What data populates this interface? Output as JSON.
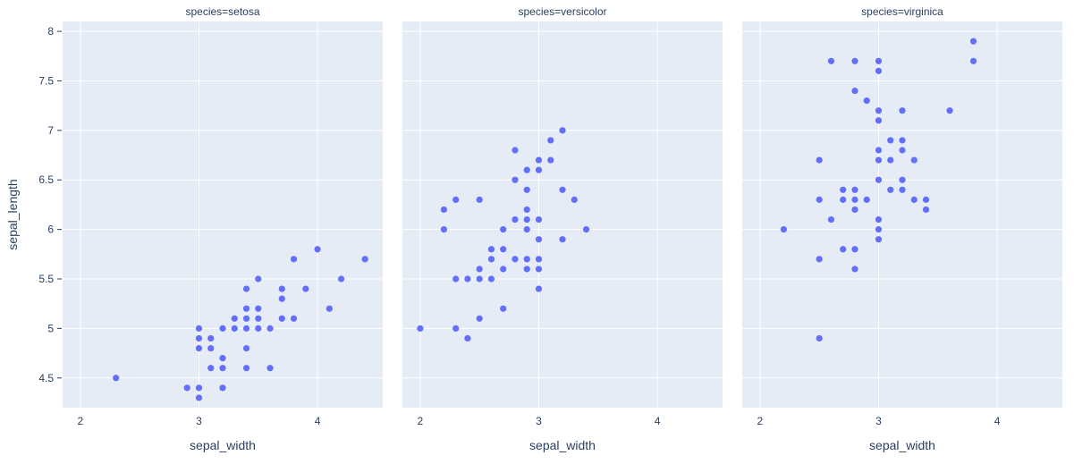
{
  "chart_data": {
    "type": "scatter",
    "xlabel": "sepal_width",
    "ylabel": "sepal_length",
    "xlim": [
      1.85,
      4.55
    ],
    "ylim": [
      4.2,
      8.1
    ],
    "x_ticks": [
      2,
      3,
      4
    ],
    "y_ticks": [
      4.5,
      5,
      5.5,
      6,
      6.5,
      7,
      7.5,
      8
    ],
    "grid": true,
    "marker_color": "#636efa",
    "plot_bg_color": "#e5ecf6",
    "facets": [
      {
        "title": "species=setosa",
        "points": [
          [
            2.3,
            4.5
          ],
          [
            2.9,
            4.4
          ],
          [
            3.0,
            4.4
          ],
          [
            3.0,
            4.3
          ],
          [
            3.0,
            4.8
          ],
          [
            3.0,
            4.9
          ],
          [
            3.0,
            5.0
          ],
          [
            3.1,
            4.8
          ],
          [
            3.1,
            4.9
          ],
          [
            3.1,
            4.6
          ],
          [
            3.2,
            4.4
          ],
          [
            3.2,
            4.6
          ],
          [
            3.2,
            4.7
          ],
          [
            3.2,
            5.0
          ],
          [
            3.3,
            5.0
          ],
          [
            3.3,
            5.1
          ],
          [
            3.4,
            4.6
          ],
          [
            3.4,
            4.8
          ],
          [
            3.4,
            5.0
          ],
          [
            3.4,
            5.1
          ],
          [
            3.4,
            5.2
          ],
          [
            3.4,
            5.4
          ],
          [
            3.5,
            5.0
          ],
          [
            3.5,
            5.1
          ],
          [
            3.5,
            5.2
          ],
          [
            3.5,
            5.5
          ],
          [
            3.6,
            4.6
          ],
          [
            3.6,
            5.0
          ],
          [
            3.7,
            5.1
          ],
          [
            3.7,
            5.3
          ],
          [
            3.7,
            5.4
          ],
          [
            3.8,
            5.1
          ],
          [
            3.8,
            5.7
          ],
          [
            3.9,
            5.4
          ],
          [
            4.0,
            5.8
          ],
          [
            4.1,
            5.2
          ],
          [
            4.2,
            5.5
          ],
          [
            4.4,
            5.7
          ]
        ]
      },
      {
        "title": "species=versicolor",
        "points": [
          [
            2.0,
            5.0
          ],
          [
            2.2,
            6.0
          ],
          [
            2.2,
            6.2
          ],
          [
            2.3,
            5.0
          ],
          [
            2.3,
            5.5
          ],
          [
            2.3,
            6.3
          ],
          [
            2.4,
            4.9
          ],
          [
            2.4,
            5.5
          ],
          [
            2.5,
            5.1
          ],
          [
            2.5,
            5.5
          ],
          [
            2.5,
            5.6
          ],
          [
            2.5,
            6.3
          ],
          [
            2.6,
            5.5
          ],
          [
            2.6,
            5.7
          ],
          [
            2.6,
            5.8
          ],
          [
            2.7,
            5.2
          ],
          [
            2.7,
            5.6
          ],
          [
            2.7,
            5.8
          ],
          [
            2.7,
            6.0
          ],
          [
            2.8,
            5.7
          ],
          [
            2.8,
            6.1
          ],
          [
            2.8,
            6.5
          ],
          [
            2.8,
            6.8
          ],
          [
            2.9,
            5.6
          ],
          [
            2.9,
            5.7
          ],
          [
            2.9,
            6.0
          ],
          [
            2.9,
            6.1
          ],
          [
            2.9,
            6.2
          ],
          [
            2.9,
            6.4
          ],
          [
            2.9,
            6.6
          ],
          [
            3.0,
            5.4
          ],
          [
            3.0,
            5.6
          ],
          [
            3.0,
            5.7
          ],
          [
            3.0,
            5.9
          ],
          [
            3.0,
            6.1
          ],
          [
            3.0,
            6.6
          ],
          [
            3.0,
            6.7
          ],
          [
            3.1,
            6.7
          ],
          [
            3.1,
            6.9
          ],
          [
            3.2,
            5.9
          ],
          [
            3.2,
            6.4
          ],
          [
            3.2,
            7.0
          ],
          [
            3.3,
            6.3
          ],
          [
            3.4,
            6.0
          ]
        ]
      },
      {
        "title": "species=virginica",
        "points": [
          [
            2.2,
            6.0
          ],
          [
            2.5,
            4.9
          ],
          [
            2.5,
            5.7
          ],
          [
            2.5,
            6.3
          ],
          [
            2.5,
            6.7
          ],
          [
            2.6,
            6.1
          ],
          [
            2.6,
            7.7
          ],
          [
            2.7,
            5.8
          ],
          [
            2.7,
            6.3
          ],
          [
            2.7,
            6.4
          ],
          [
            2.8,
            5.6
          ],
          [
            2.8,
            5.8
          ],
          [
            2.8,
            6.2
          ],
          [
            2.8,
            6.3
          ],
          [
            2.8,
            6.4
          ],
          [
            2.8,
            7.4
          ],
          [
            2.8,
            7.7
          ],
          [
            2.9,
            6.3
          ],
          [
            2.9,
            7.3
          ],
          [
            3.0,
            5.9
          ],
          [
            3.0,
            6.0
          ],
          [
            3.0,
            6.1
          ],
          [
            3.0,
            6.5
          ],
          [
            3.0,
            6.7
          ],
          [
            3.0,
            6.8
          ],
          [
            3.0,
            7.1
          ],
          [
            3.0,
            7.2
          ],
          [
            3.0,
            7.6
          ],
          [
            3.0,
            7.7
          ],
          [
            3.1,
            6.4
          ],
          [
            3.1,
            6.7
          ],
          [
            3.1,
            6.9
          ],
          [
            3.2,
            6.4
          ],
          [
            3.2,
            6.5
          ],
          [
            3.2,
            6.8
          ],
          [
            3.2,
            6.9
          ],
          [
            3.2,
            7.2
          ],
          [
            3.3,
            6.3
          ],
          [
            3.3,
            6.7
          ],
          [
            3.4,
            6.2
          ],
          [
            3.4,
            6.3
          ],
          [
            3.6,
            7.2
          ],
          [
            3.8,
            7.7
          ],
          [
            3.8,
            7.9
          ]
        ]
      }
    ]
  }
}
